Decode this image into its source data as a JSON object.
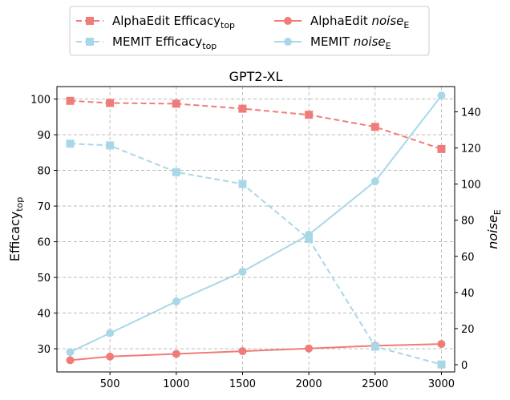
{
  "chart_data": {
    "type": "line",
    "title": "GPT2-XL",
    "xlabel": "",
    "ylabel_left": {
      "base": "Efficacy",
      "sub": "top"
    },
    "ylabel_right": {
      "base": "noise",
      "sub": "E"
    },
    "x": [
      200,
      500,
      1000,
      1500,
      2000,
      2500,
      3000
    ],
    "x_ticks": [
      500,
      1000,
      1500,
      2000,
      2500,
      3000
    ],
    "xlim": [
      100,
      3100
    ],
    "ylim_left": [
      23.5,
      103.5
    ],
    "ylim_right": [
      -4,
      154
    ],
    "y_ticks_left": [
      30,
      40,
      50,
      60,
      70,
      80,
      90,
      100
    ],
    "y_ticks_right": [
      0,
      20,
      40,
      60,
      80,
      100,
      120,
      140
    ],
    "grid": true,
    "legend_position": "top-center",
    "series": [
      {
        "name": "AlphaEdit Efficacy",
        "name_sub": "top",
        "axis": "left",
        "style": "dashed",
        "marker": "square",
        "color": "#f07c79",
        "values": [
          99.5,
          98.9,
          98.7,
          97.3,
          95.6,
          92.2,
          86.0
        ]
      },
      {
        "name": "MEMIT Efficacy",
        "name_sub": "top",
        "axis": "left",
        "style": "dashed",
        "marker": "square",
        "color": "#a8d8e8",
        "values": [
          87.5,
          87.0,
          79.5,
          76.2,
          60.8,
          30.6,
          25.6
        ]
      },
      {
        "name": "AlphaEdit ",
        "name_italic": "noise",
        "name_sub": "E",
        "axis": "right",
        "style": "solid",
        "marker": "circle",
        "color": "#f07c79",
        "values": [
          2.5,
          4.5,
          6.0,
          7.5,
          9.0,
          10.5,
          11.5
        ]
      },
      {
        "name": "MEMIT ",
        "name_italic": "noise",
        "name_sub": "E",
        "axis": "right",
        "style": "solid",
        "marker": "circle",
        "color": "#a8d8e8",
        "values": [
          7,
          17.5,
          35,
          51.5,
          72,
          101.5,
          149
        ]
      }
    ]
  }
}
